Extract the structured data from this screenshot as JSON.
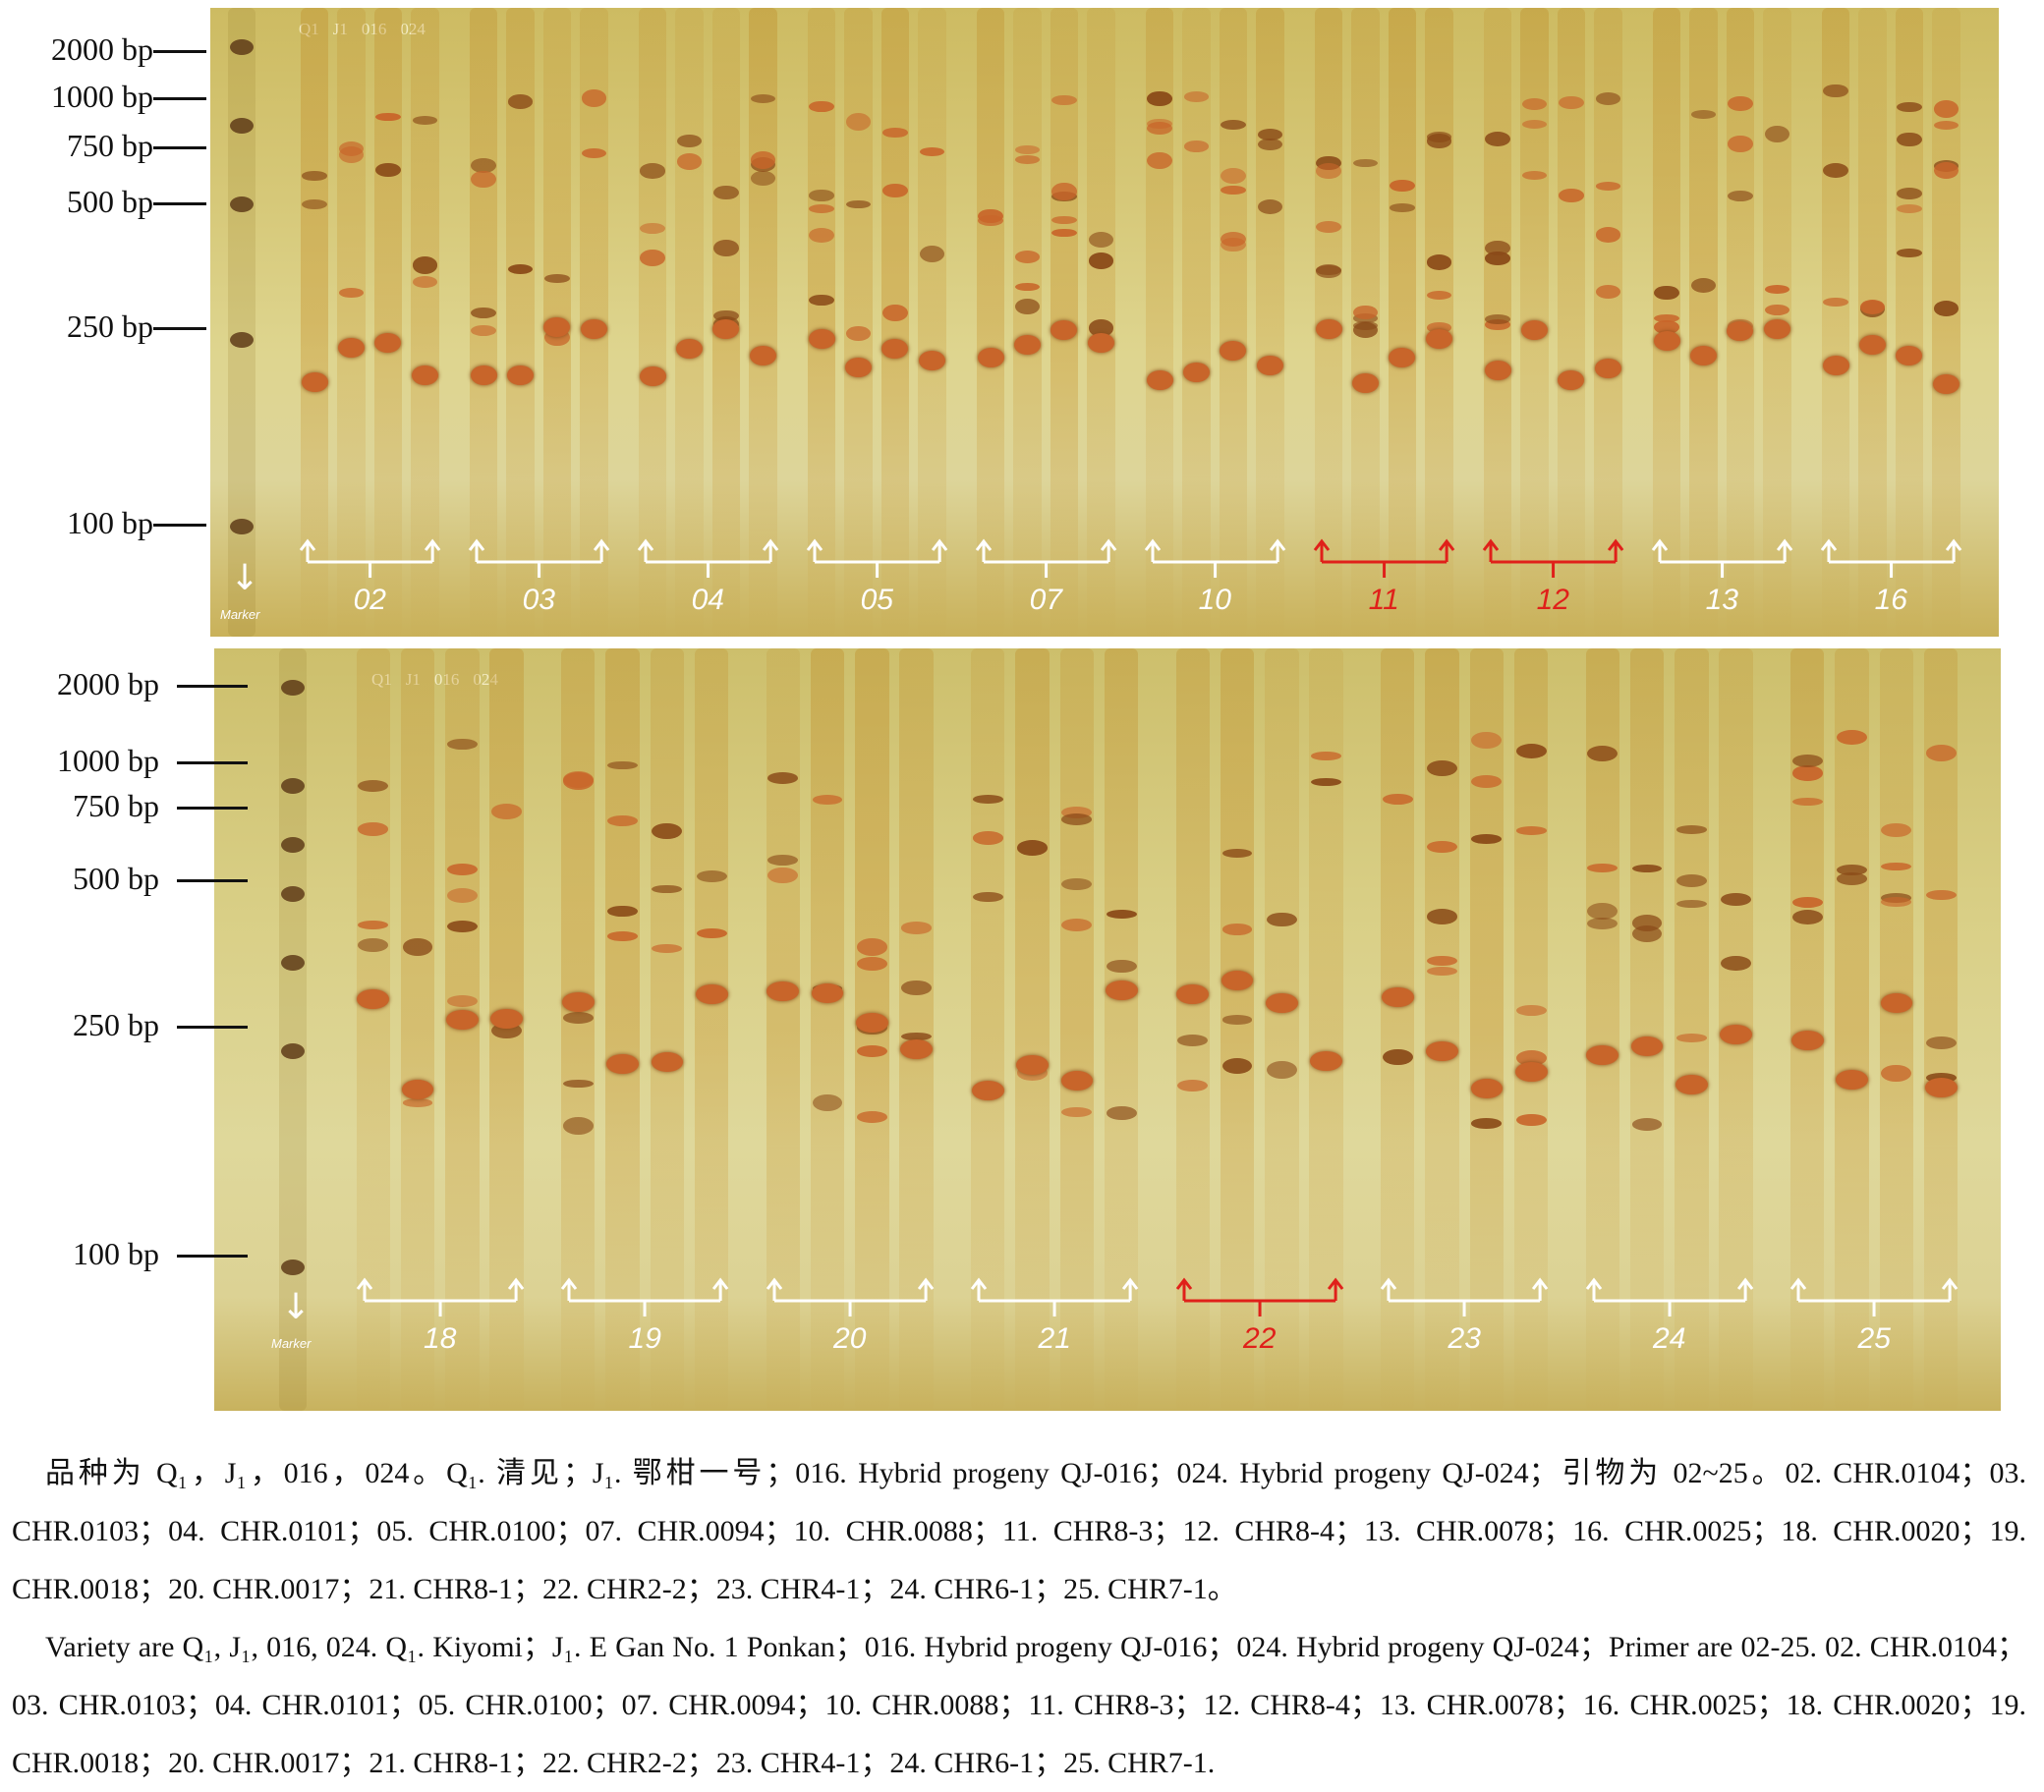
{
  "panels": [
    {
      "ladder": [
        "2000 bp",
        "1000 bp",
        "750 bp",
        "500 bp",
        "250 bp",
        "100 bp"
      ],
      "lane_header": [
        "Q1",
        "J1",
        "016",
        "024"
      ],
      "marker_label": "Marker",
      "primer_groups": [
        {
          "label": "02",
          "highlight": false
        },
        {
          "label": "03",
          "highlight": false
        },
        {
          "label": "04",
          "highlight": false
        },
        {
          "label": "05",
          "highlight": false
        },
        {
          "label": "07",
          "highlight": false
        },
        {
          "label": "10",
          "highlight": false
        },
        {
          "label": "11",
          "highlight": true
        },
        {
          "label": "12",
          "highlight": true
        },
        {
          "label": "13",
          "highlight": false
        },
        {
          "label": "16",
          "highlight": false
        }
      ]
    },
    {
      "ladder": [
        "2000 bp",
        "1000 bp",
        "750 bp",
        "500 bp",
        "250 bp",
        "100 bp"
      ],
      "lane_header": [
        "Q1",
        "J1",
        "016",
        "024"
      ],
      "marker_label": "Marker",
      "primer_groups": [
        {
          "label": "18",
          "highlight": false
        },
        {
          "label": "19",
          "highlight": false
        },
        {
          "label": "20",
          "highlight": false
        },
        {
          "label": "21",
          "highlight": false
        },
        {
          "label": "22",
          "highlight": true
        },
        {
          "label": "23",
          "highlight": false
        },
        {
          "label": "24",
          "highlight": false
        },
        {
          "label": "25",
          "highlight": false
        }
      ]
    }
  ],
  "colors": {
    "gel_light": "#d8cd86",
    "gel_mid": "#c9b45c",
    "band_dark": "#8a4a18",
    "band_orange": "#c8652a",
    "bracket_white": "#ffffff",
    "bracket_red": "#e0201a"
  },
  "caption": {
    "zh": "品种为 Q₁，J₁，016，024。Q₁. 清见；J₁. 鄂柑一号；016. Hybrid progeny QJ-016；024. Hybrid progeny QJ-024；引物为 02~25。02. CHR.0104；03. CHR.0103；04. CHR.0101；05. CHR.0100；07. CHR.0094；10. CHR.0088；11. CHR8-3；12. CHR8-4；13. CHR.0078；16. CHR.0025；18. CHR.0020；19. CHR.0018；20. CHR.0017；21. CHR8-1；22. CHR2-2；23. CHR4-1；24. CHR6-1；25. CHR7-1。",
    "en": "Variety are Q₁, J₁, 016, 024. Q₁. Kiyomi；J₁. E Gan No. 1 Ponkan；016. Hybrid progeny QJ-016；024. Hybrid progeny QJ-024；Primer are 02-25. 02. CHR.0104；03. CHR.0103；04. CHR.0101；05. CHR.0100；07. CHR.0094；10. CHR.0088；11. CHR8-3；12. CHR8-4；13. CHR.0078；16. CHR.0025；18. CHR.0020；19. CHR.0018；20. CHR.0017；21. CHR8-1；22. CHR2-2；23. CHR4-1；24. CHR6-1；25. CHR7-1."
  }
}
